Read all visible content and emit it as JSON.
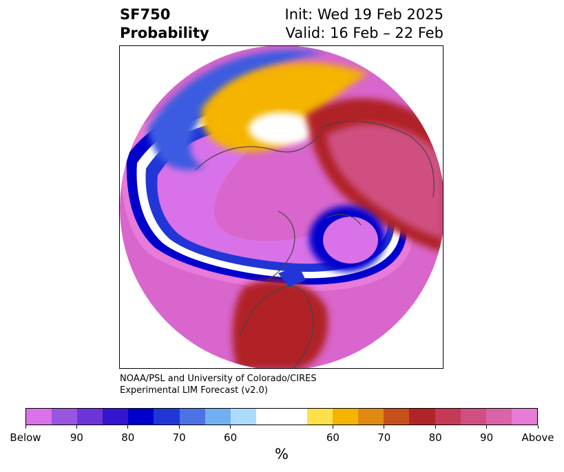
{
  "title": {
    "line1_left": "SF750",
    "line2_left": "Probability",
    "line1_right": "Init: Wed 19 Feb 2025",
    "line2_right": "Valid: 16 Feb – 22 Feb"
  },
  "credit": {
    "line1": "NOAA/PSL and University of Colorado/CIRES",
    "line2": "Experimental LIM Forecast (v2.0)"
  },
  "colorbar": {
    "unit": "%",
    "colors": [
      "#d972e8",
      "#9a55e0",
      "#6b35d8",
      "#3516d0",
      "#0000cc",
      "#2236d8",
      "#4d72e6",
      "#70b0f2",
      "#acdcfc",
      "#ffffff",
      "#fee14a",
      "#f4b400",
      "#e08a12",
      "#c6501c",
      "#b02428",
      "#c63a56",
      "#cf5080",
      "#da62a8",
      "#e87ad8"
    ],
    "ticks": [
      "Below",
      "90",
      "80",
      "70",
      "60",
      "60",
      "70",
      "80",
      "90",
      "Above"
    ]
  },
  "map_colors": {
    "below_deep": "#d972e8",
    "below_blue": "#0000cc",
    "near_normal": "#ffffff",
    "above_yellow": "#f4b400",
    "above_red": "#b02428",
    "above_pink": "#da62a8"
  }
}
